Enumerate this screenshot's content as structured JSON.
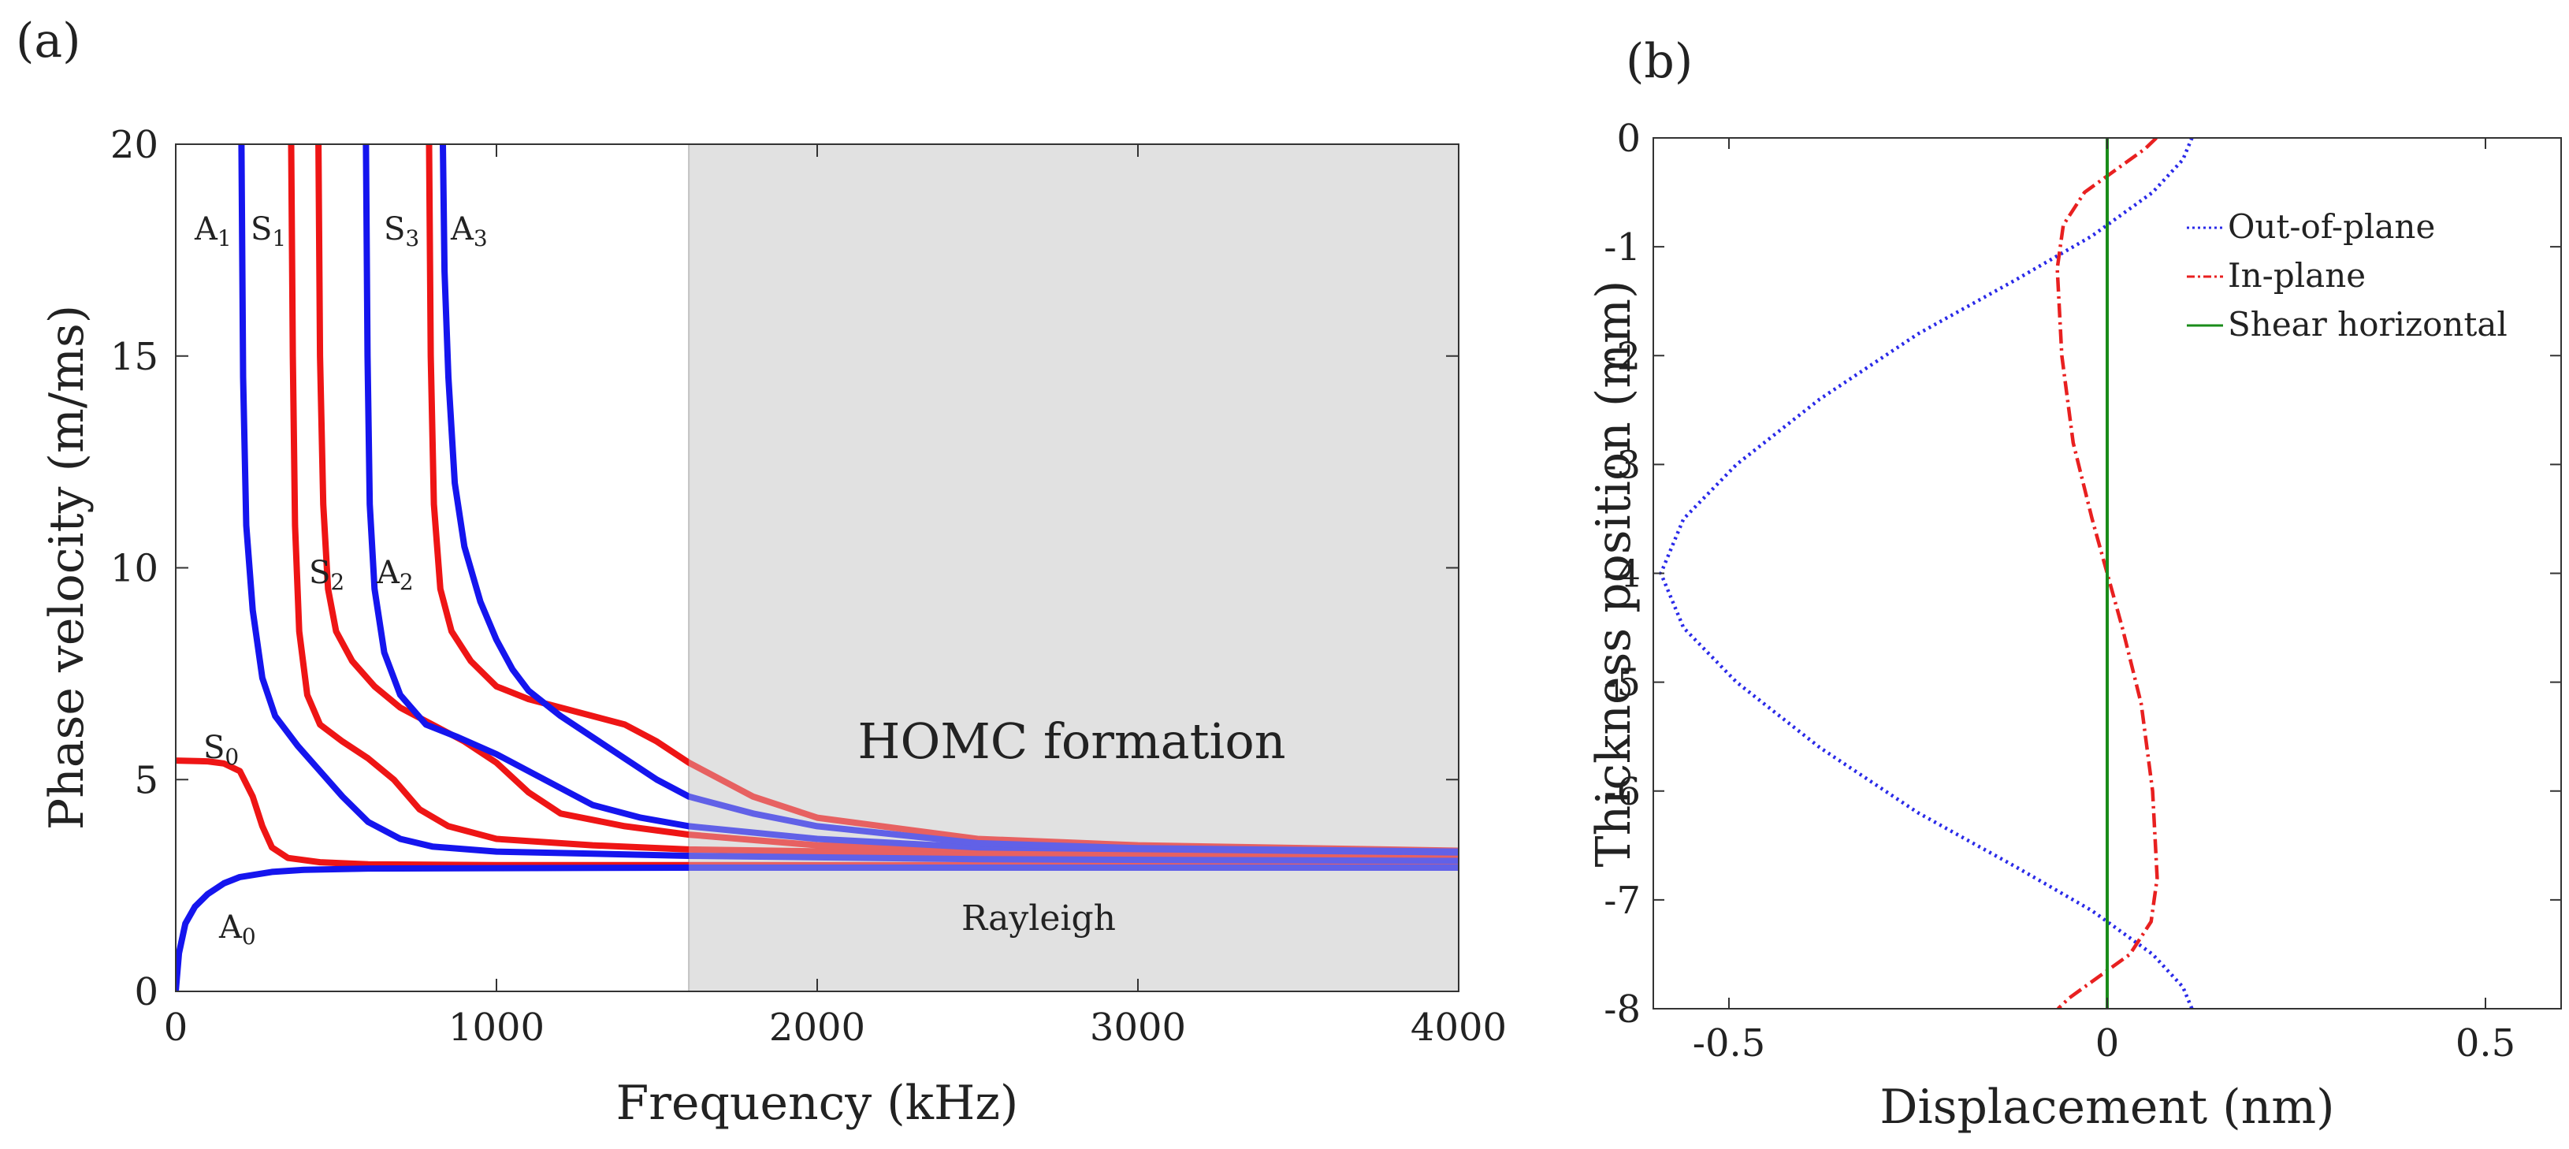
{
  "panels": {
    "a": "(a)",
    "b": "(b)"
  },
  "chart_data": [
    {
      "type": "line",
      "panel": "(a)",
      "xlabel": "Frequency (kHz)",
      "ylabel": "Phase velocity (m/ms)",
      "xlim": [
        0,
        4000
      ],
      "ylim": [
        0,
        20
      ],
      "xticks": [
        "0",
        "1000",
        "2000",
        "3000",
        "4000"
      ],
      "yticks": [
        "0",
        "5",
        "10",
        "15",
        "20"
      ],
      "shaded_region": {
        "x_from": 1600,
        "x_to": 4000,
        "label": "HOMC formation",
        "sublabel": "Rayleigh"
      },
      "colors": {
        "antisymmetric": "#1515ee",
        "symmetric": "#ee1515",
        "shade": "#e4e4e4"
      },
      "series": [
        {
          "name": "A0",
          "base": "A",
          "sub": "0",
          "family": "antisymmetric",
          "points": [
            [
              0,
              0
            ],
            [
              10,
              0.9
            ],
            [
              30,
              1.6
            ],
            [
              60,
              2.0
            ],
            [
              100,
              2.3
            ],
            [
              150,
              2.55
            ],
            [
              200,
              2.7
            ],
            [
              300,
              2.82
            ],
            [
              400,
              2.87
            ],
            [
              600,
              2.9
            ],
            [
              1000,
              2.91
            ],
            [
              1600,
              2.92
            ],
            [
              4000,
              2.92
            ]
          ]
        },
        {
          "name": "S0",
          "base": "S",
          "sub": "0",
          "family": "symmetric",
          "points": [
            [
              0,
              5.45
            ],
            [
              100,
              5.43
            ],
            [
              150,
              5.38
            ],
            [
              200,
              5.2
            ],
            [
              240,
              4.6
            ],
            [
              270,
              3.9
            ],
            [
              300,
              3.4
            ],
            [
              350,
              3.15
            ],
            [
              450,
              3.05
            ],
            [
              600,
              3.0
            ],
            [
              1000,
              2.98
            ],
            [
              1600,
              2.98
            ],
            [
              4000,
              2.98
            ]
          ]
        },
        {
          "name": "A1",
          "base": "A",
          "sub": "1",
          "family": "antisymmetric",
          "points": [
            [
              205,
              20
            ],
            [
              210,
              14.5
            ],
            [
              220,
              11
            ],
            [
              240,
              9
            ],
            [
              270,
              7.4
            ],
            [
              310,
              6.5
            ],
            [
              380,
              5.8
            ],
            [
              450,
              5.2
            ],
            [
              520,
              4.6
            ],
            [
              600,
              4.0
            ],
            [
              700,
              3.6
            ],
            [
              800,
              3.42
            ],
            [
              1000,
              3.3
            ],
            [
              1600,
              3.2
            ],
            [
              2500,
              3.12
            ],
            [
              4000,
              3.08
            ]
          ]
        },
        {
          "name": "S1",
          "base": "S",
          "sub": "1",
          "family": "symmetric",
          "points": [
            [
              360,
              20
            ],
            [
              365,
              15
            ],
            [
              372,
              11
            ],
            [
              385,
              8.5
            ],
            [
              410,
              7.0
            ],
            [
              450,
              6.3
            ],
            [
              520,
              5.9
            ],
            [
              600,
              5.5
            ],
            [
              680,
              5.0
            ],
            [
              760,
              4.3
            ],
            [
              850,
              3.9
            ],
            [
              1000,
              3.6
            ],
            [
              1300,
              3.45
            ],
            [
              1600,
              3.35
            ],
            [
              2500,
              3.25
            ],
            [
              4000,
              3.2
            ]
          ]
        },
        {
          "name": "S2",
          "base": "S",
          "sub": "2",
          "family": "symmetric",
          "points": [
            [
              445,
              20
            ],
            [
              450,
              15
            ],
            [
              460,
              11.5
            ],
            [
              475,
              9.5
            ],
            [
              500,
              8.5
            ],
            [
              550,
              7.8
            ],
            [
              620,
              7.2
            ],
            [
              700,
              6.7
            ],
            [
              800,
              6.3
            ],
            [
              900,
              5.9
            ],
            [
              1000,
              5.4
            ],
            [
              1100,
              4.7
            ],
            [
              1200,
              4.2
            ],
            [
              1400,
              3.9
            ],
            [
              1600,
              3.7
            ],
            [
              2000,
              3.45
            ],
            [
              2500,
              3.35
            ],
            [
              4000,
              3.25
            ]
          ]
        },
        {
          "name": "A2",
          "base": "A",
          "sub": "2",
          "family": "antisymmetric",
          "points": [
            [
              593,
              20
            ],
            [
              598,
              15
            ],
            [
              605,
              11.5
            ],
            [
              620,
              9.5
            ],
            [
              650,
              8.0
            ],
            [
              700,
              7.0
            ],
            [
              780,
              6.3
            ],
            [
              880,
              6.0
            ],
            [
              1000,
              5.6
            ],
            [
              1100,
              5.2
            ],
            [
              1200,
              4.8
            ],
            [
              1300,
              4.4
            ],
            [
              1450,
              4.1
            ],
            [
              1600,
              3.9
            ],
            [
              2000,
              3.6
            ],
            [
              2500,
              3.4
            ],
            [
              4000,
              3.28
            ]
          ]
        },
        {
          "name": "S3",
          "base": "S",
          "sub": "3",
          "family": "symmetric",
          "points": [
            [
              790,
              20
            ],
            [
              795,
              15
            ],
            [
              805,
              11.5
            ],
            [
              825,
              9.5
            ],
            [
              860,
              8.5
            ],
            [
              920,
              7.8
            ],
            [
              1000,
              7.2
            ],
            [
              1100,
              6.9
            ],
            [
              1200,
              6.7
            ],
            [
              1300,
              6.5
            ],
            [
              1400,
              6.3
            ],
            [
              1500,
              5.9
            ],
            [
              1600,
              5.4
            ],
            [
              1800,
              4.6
            ],
            [
              2000,
              4.1
            ],
            [
              2500,
              3.6
            ],
            [
              3000,
              3.45
            ],
            [
              4000,
              3.32
            ]
          ]
        },
        {
          "name": "A3",
          "base": "A",
          "sub": "3",
          "family": "antisymmetric",
          "points": [
            [
              833,
              20
            ],
            [
              838,
              17
            ],
            [
              850,
              14.5
            ],
            [
              870,
              12
            ],
            [
              900,
              10.5
            ],
            [
              950,
              9.2
            ],
            [
              1000,
              8.3
            ],
            [
              1050,
              7.6
            ],
            [
              1100,
              7.1
            ],
            [
              1200,
              6.5
            ],
            [
              1300,
              6.0
            ],
            [
              1400,
              5.5
            ],
            [
              1500,
              5.0
            ],
            [
              1600,
              4.6
            ],
            [
              1800,
              4.2
            ],
            [
              2000,
              3.9
            ],
            [
              2500,
              3.5
            ],
            [
              3000,
              3.38
            ],
            [
              4000,
              3.3
            ]
          ]
        }
      ]
    },
    {
      "type": "line",
      "panel": "(b)",
      "xlabel": "Displacement (nm)",
      "ylabel": "Thickness position (mm)",
      "xlim": [
        -0.6,
        0.6
      ],
      "ylim": [
        -8,
        0
      ],
      "xticks": [
        "-0.5",
        "0",
        "0.5"
      ],
      "yticks": [
        "0",
        "-1",
        "-2",
        "-3",
        "-4",
        "-5",
        "-6",
        "-7",
        "-8"
      ],
      "legend_position": "top-right",
      "series": [
        {
          "name": "Out-of-plane",
          "color": "#2a2ae8",
          "style": "dotted",
          "points": [
            [
              0.112,
              0
            ],
            [
              0.1,
              -0.2
            ],
            [
              0.06,
              -0.5
            ],
            [
              -0.02,
              -0.9
            ],
            [
              -0.12,
              -1.3
            ],
            [
              -0.25,
              -1.8
            ],
            [
              -0.38,
              -2.4
            ],
            [
              -0.49,
              -3.0
            ],
            [
              -0.56,
              -3.5
            ],
            [
              -0.59,
              -4.0
            ],
            [
              -0.56,
              -4.5
            ],
            [
              -0.49,
              -5.0
            ],
            [
              -0.38,
              -5.6
            ],
            [
              -0.25,
              -6.2
            ],
            [
              -0.12,
              -6.7
            ],
            [
              -0.02,
              -7.1
            ],
            [
              0.06,
              -7.5
            ],
            [
              0.1,
              -7.8
            ],
            [
              0.112,
              -8
            ]
          ]
        },
        {
          "name": "In-plane",
          "color": "#e82020",
          "style": "dashdot",
          "points": [
            [
              0.065,
              0
            ],
            [
              0.05,
              -0.1
            ],
            [
              0.01,
              -0.3
            ],
            [
              -0.03,
              -0.5
            ],
            [
              -0.058,
              -0.8
            ],
            [
              -0.066,
              -1.2
            ],
            [
              -0.06,
              -2.0
            ],
            [
              -0.045,
              -2.8
            ],
            [
              -0.02,
              -3.5
            ],
            [
              0,
              -4.0
            ],
            [
              0.02,
              -4.5
            ],
            [
              0.045,
              -5.2
            ],
            [
              0.06,
              -6.0
            ],
            [
              0.066,
              -6.8
            ],
            [
              0.058,
              -7.2
            ],
            [
              0.03,
              -7.5
            ],
            [
              -0.01,
              -7.7
            ],
            [
              -0.05,
              -7.9
            ],
            [
              -0.065,
              -8
            ]
          ]
        },
        {
          "name": "Shear horizontal",
          "color": "#1a8c1a",
          "style": "solid",
          "points": [
            [
              0,
              0
            ],
            [
              0,
              -8
            ]
          ]
        }
      ]
    }
  ]
}
